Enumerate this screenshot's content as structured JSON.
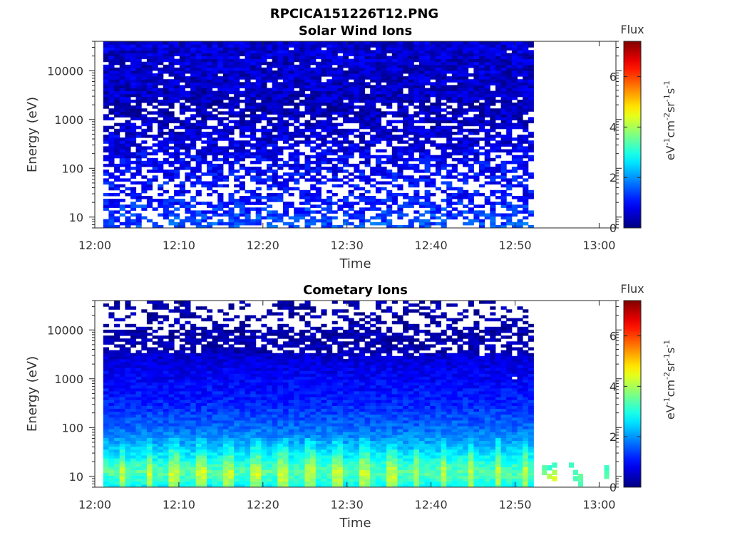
{
  "figure_title": "RPCICA151226T12.PNG",
  "colorbar": {
    "title": "Flux",
    "label": "eV<sup>-1</sup>cm<sup>-2</sup>sr<sup>-1</sup>s<sup>-1</sup>",
    "label_parts": [
      {
        "t": "eV",
        "sup": false
      },
      {
        "t": "-1",
        "sup": true
      },
      {
        "t": "cm",
        "sup": false
      },
      {
        "t": "-2",
        "sup": true
      },
      {
        "t": "sr",
        "sup": false
      },
      {
        "t": "-1",
        "sup": true
      },
      {
        "t": "s",
        "sup": false
      },
      {
        "t": "-1",
        "sup": true
      }
    ],
    "range": [
      0,
      7.4
    ],
    "ticks": [
      "0",
      "2",
      "4",
      "6"
    ],
    "colormap": "jet"
  },
  "chart_data": [
    {
      "type": "heatmap",
      "title": "Solar Wind Ions",
      "xlabel": "Time",
      "ylabel": "Energy (eV)",
      "x_ticks": [
        "12:00",
        "12:10",
        "12:20",
        "12:30",
        "12:40",
        "12:50",
        "13:00"
      ],
      "y_ticks": [
        "10",
        "100",
        "1000",
        "10000"
      ],
      "y_scale": "log",
      "x_range_minutes": [
        0,
        62
      ],
      "y_range_eV": [
        6,
        40000
      ],
      "data_extent_minutes": [
        1.0,
        52.2
      ],
      "y_bins": 64,
      "time_bins": 79,
      "profile": {
        "energy_eV": [
          7,
          10,
          20,
          30,
          40,
          100,
          500,
          2000,
          3000,
          40000
        ],
        "mean_flux": [
          1.5,
          1.4,
          1.1,
          0.9,
          1.0,
          0.9,
          0.6,
          0.35,
          0.5,
          0.6
        ],
        "gap_probability": [
          0.45,
          0.4,
          0.35,
          0.45,
          0.55,
          0.3,
          0.3,
          0.2,
          0.05,
          0.03
        ]
      }
    },
    {
      "type": "heatmap",
      "title": "Cometary Ions",
      "xlabel": "Time",
      "ylabel": "Energy (eV)",
      "x_ticks": [
        "12:00",
        "12:10",
        "12:20",
        "12:30",
        "12:40",
        "12:50",
        "13:00"
      ],
      "y_ticks": [
        "10",
        "100",
        "1000",
        "10000"
      ],
      "y_scale": "log",
      "x_range_minutes": [
        0,
        62
      ],
      "y_range_eV": [
        6,
        40000
      ],
      "data_extent_minutes": [
        1.0,
        52.2
      ],
      "y_bins": 64,
      "time_bins": 79,
      "periodic_peak_minutes": 3.2,
      "profile": {
        "energy_eV": [
          6,
          12,
          20,
          40,
          100,
          300,
          1000,
          3000,
          3500,
          10000,
          12000,
          40000
        ],
        "mean_flux": [
          2.7,
          3.4,
          3.0,
          2.3,
          1.7,
          1.2,
          0.9,
          0.6,
          0.35,
          0.3,
          0.3,
          0.3
        ],
        "gap_probability": [
          0,
          0,
          0,
          0,
          0,
          0,
          0,
          0.02,
          0.3,
          0.3,
          0.65,
          0.65
        ]
      },
      "tail": [
        {
          "t": 53.2,
          "e": 12,
          "v": 3.6
        },
        {
          "t": 53.2,
          "e": 15,
          "v": 3.4
        },
        {
          "t": 53.8,
          "e": 10,
          "v": 4.1
        },
        {
          "t": 53.8,
          "e": 15,
          "v": 3.1
        },
        {
          "t": 54.4,
          "e": 12,
          "v": 4.0
        },
        {
          "t": 54.4,
          "e": 9,
          "v": 4.4
        },
        {
          "t": 54.4,
          "e": 17,
          "v": 3.2
        },
        {
          "t": 56.4,
          "e": 17,
          "v": 3.2
        },
        {
          "t": 56.9,
          "e": 12,
          "v": 3.3
        },
        {
          "t": 56.9,
          "e": 9,
          "v": 3.3
        },
        {
          "t": 57.5,
          "e": 9,
          "v": 3.4
        },
        {
          "t": 57.5,
          "e": 10,
          "v": 3.5
        },
        {
          "t": 57.5,
          "e": 7,
          "v": 3.3
        },
        {
          "t": 60.6,
          "e": 12,
          "v": 3.3
        },
        {
          "t": 60.6,
          "e": 10,
          "v": 3.4
        },
        {
          "t": 60.6,
          "e": 15,
          "v": 3.2
        }
      ]
    }
  ]
}
